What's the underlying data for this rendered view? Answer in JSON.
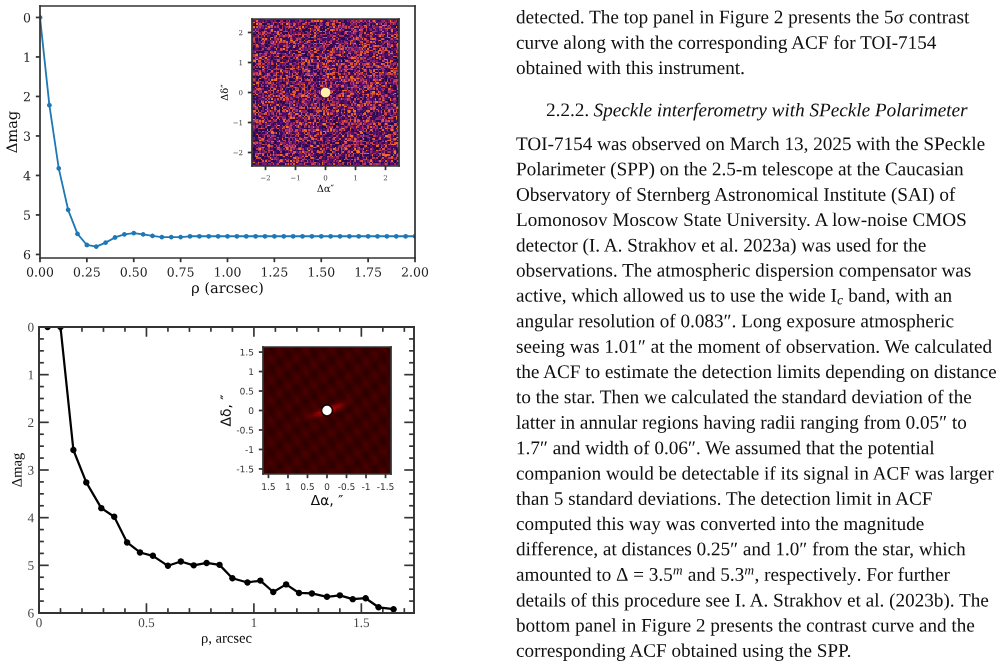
{
  "chart_data": [
    {
      "type": "line",
      "xlabel": "ρ (arcsec)",
      "ylabel": "Δmag",
      "color": "#1f77b4",
      "marker": "circle",
      "x": [
        0,
        0.05,
        0.1,
        0.15,
        0.2,
        0.25,
        0.3,
        0.35,
        0.4,
        0.45,
        0.5,
        0.55,
        0.6,
        0.65,
        0.7,
        0.75,
        0.8,
        0.85,
        0.9,
        0.95,
        1.0,
        1.05,
        1.1,
        1.15,
        1.2,
        1.25,
        1.3,
        1.35,
        1.4,
        1.45,
        1.5,
        1.55,
        1.6,
        1.65,
        1.7,
        1.75,
        1.8,
        1.85,
        1.9,
        1.95,
        2.0
      ],
      "values": [
        0,
        2.22,
        3.82,
        4.87,
        5.48,
        5.76,
        5.8,
        5.7,
        5.57,
        5.49,
        5.46,
        5.49,
        5.53,
        5.56,
        5.56,
        5.56,
        5.54,
        5.54,
        5.54,
        5.54,
        5.54,
        5.54,
        5.54,
        5.54,
        5.54,
        5.54,
        5.54,
        5.54,
        5.54,
        5.54,
        5.54,
        5.54,
        5.54,
        5.54,
        5.54,
        5.54,
        5.54,
        5.54,
        5.54,
        5.54,
        5.54
      ],
      "xlim": [
        0,
        2
      ],
      "ylim": [
        6.09,
        -0.29
      ],
      "xticks": [
        {
          "value": 0,
          "label": "0.00"
        },
        {
          "value": 0.25,
          "label": "0.25"
        },
        {
          "value": 0.5,
          "label": "0.50"
        },
        {
          "value": 0.75,
          "label": "0.75"
        },
        {
          "value": 1,
          "label": "1.00"
        },
        {
          "value": 1.25,
          "label": "1.25"
        },
        {
          "value": 1.5,
          "label": "1.50"
        },
        {
          "value": 1.75,
          "label": "1.75"
        },
        {
          "value": 2,
          "label": "2.00"
        }
      ],
      "yticks": [
        0,
        1,
        2,
        3,
        4,
        5,
        6
      ]
    },
    {
      "type": "scatter",
      "xlabel": "Δα″",
      "ylabel": "Δδ″",
      "x": [
        0
      ],
      "values": [
        0
      ],
      "color": "#fff0a8",
      "marker": "circle",
      "xlim": [
        -2.45,
        2.45
      ],
      "ylim": [
        -2.45,
        2.45
      ],
      "xticks": [
        {
          "value": -2,
          "label": "−2"
        },
        {
          "value": -1,
          "label": "−1"
        },
        0,
        1,
        2
      ],
      "yticks": [
        {
          "value": -2,
          "label": "−2"
        },
        {
          "value": -1,
          "label": "−1"
        },
        0,
        1,
        2
      ]
    },
    {
      "type": "line",
      "xlabel": "ρ, arcsec",
      "ylabel": "Δmag",
      "color": "#000000",
      "marker": "circle",
      "x": [
        0.04,
        0.1,
        0.16,
        0.22,
        0.29,
        0.35,
        0.41,
        0.47,
        0.53,
        0.6,
        0.66,
        0.72,
        0.78,
        0.84,
        0.9,
        0.97,
        1.03,
        1.09,
        1.15,
        1.21,
        1.27,
        1.34,
        1.4,
        1.46,
        1.52,
        1.58,
        1.65
      ],
      "values": [
        0,
        0,
        2.58,
        3.26,
        3.8,
        3.98,
        4.52,
        4.73,
        4.8,
        5.01,
        4.92,
        5.0,
        4.95,
        4.99,
        5.27,
        5.36,
        5.32,
        5.56,
        5.4,
        5.58,
        5.59,
        5.66,
        5.63,
        5.71,
        5.69,
        5.88,
        5.92
      ],
      "xlim": [
        0,
        1.745
      ],
      "ylim": [
        6,
        0
      ],
      "xticks": [
        0,
        {
          "value": 0.1,
          "label": null
        },
        {
          "value": 0.2,
          "label": null
        },
        {
          "value": 0.3,
          "label": null
        },
        {
          "value": 0.4,
          "label": null
        },
        0.5,
        {
          "value": 0.6,
          "label": null
        },
        {
          "value": 0.7,
          "label": null
        },
        {
          "value": 0.8,
          "label": null
        },
        {
          "value": 0.9,
          "label": null
        },
        1,
        {
          "value": 1.1,
          "label": null
        },
        {
          "value": 1.2,
          "label": null
        },
        {
          "value": 1.3,
          "label": null
        },
        {
          "value": 1.4,
          "label": null
        },
        1.5,
        {
          "value": 1.6,
          "label": null
        },
        {
          "value": 1.7,
          "label": null
        }
      ],
      "yticks": [
        0,
        {
          "value": 0.25,
          "label": null
        },
        {
          "value": 0.5,
          "label": null
        },
        {
          "value": 0.75,
          "label": null
        },
        1,
        {
          "value": 1.25,
          "label": null
        },
        {
          "value": 1.5,
          "label": null
        },
        {
          "value": 1.75,
          "label": null
        },
        2,
        {
          "value": 2.25,
          "label": null
        },
        {
          "value": 2.5,
          "label": null
        },
        {
          "value": 2.75,
          "label": null
        },
        3,
        {
          "value": 3.25,
          "label": null
        },
        {
          "value": 3.5,
          "label": null
        },
        {
          "value": 3.75,
          "label": null
        },
        4,
        {
          "value": 4.25,
          "label": null
        },
        {
          "value": 4.5,
          "label": null
        },
        {
          "value": 4.75,
          "label": null
        },
        5,
        {
          "value": 5.25,
          "label": null
        },
        {
          "value": 5.5,
          "label": null
        },
        {
          "value": 5.75,
          "label": null
        },
        6
      ]
    },
    {
      "type": "scatter",
      "xlabel": "Δα, ″",
      "ylabel": "Δδ, ″",
      "x": [
        0
      ],
      "values": [
        0
      ],
      "color": "#ffffff",
      "marker": "circle",
      "xlim": [
        1.64,
        -1.64
      ],
      "ylim": [
        -1.63,
        1.63
      ],
      "xticks": [
        1.5,
        1,
        0.5,
        0,
        -0.5,
        -1,
        -1.5
      ],
      "yticks": [
        -1.5,
        -1,
        -0.5,
        0,
        0.5,
        1,
        1.5
      ]
    },
    {
      "type": "other",
      "annotations": [
        "detected. The top panel in Figure 2 presents the 5σ contrast curve along with the corresponding ACF for TOI-7154 obtained with this instrument.",
        "2.2.2. Speckle interferometry with SPeckle Polarimeter",
        "TOI-7154 was observed on March 13, 2025 with the SPeckle Polarimeter (SPP) on the 2.5-m telescope at the Caucasian Observatory of Sternberg Astronomical Institute (SAI) of Lomonosov Moscow State University. A low-noise CMOS detector (I. A. Strakhov et al. 2023a) was used for the observations. The atmospheric dispersion compensator was active, which allowed us to use the wide I$_{c}$ band, with an angular resolution of 0.083″. Long exposure atmospheric seeing was 1.01″ at the moment of observation. We calculated the ACF to estimate the detection limits depending on distance to the star. Then we calculated the standard deviation of the latter in annular regions having radii ranging from 0.05″ to 1.7″ and width of 0.06″. We assumed that the potential companion would be detectable if its signal in ACF was larger than 5 standard deviations. The detection limit in ACF computed this way was converted into the magnitude difference, at distances 0.25″ and 1.0″ from the star, which amounted to Δ = 3.5$^{m}$ and 5.3$^{m}$, respectively. For further details of this procedure see I. A. Strakhov et al. (2023b). The bottom panel in Figure 2 presents the contrast curve and the corresponding ACF obtained using the SPP."
      ]
    }
  ]
}
